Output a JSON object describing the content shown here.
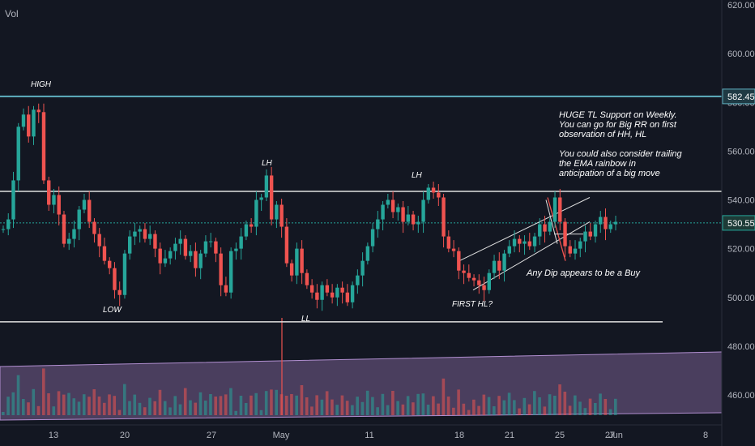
{
  "indicator_label": "Vol",
  "chart_data": {
    "type": "candlestick",
    "y_axis": {
      "ticks": [
        460,
        480,
        500,
        520,
        540,
        560,
        580,
        600,
        620
      ],
      "ylim": [
        450,
        623
      ],
      "position": "right"
    },
    "x_axis": {
      "tick_labels": [
        "13",
        "20",
        "27",
        "May",
        "11",
        "18",
        "21",
        "25",
        "27",
        "Jun",
        "8"
      ]
    },
    "price_marker": {
      "value": 530.55,
      "label": "530.55",
      "color": "#26a69a"
    },
    "resistance_marker": {
      "value": 582.45,
      "label": "582.45",
      "color": "#5fb0c0"
    },
    "horizontal_levels": [
      {
        "value": 582.45,
        "color": "#5fb0c0"
      },
      {
        "value": 543.5,
        "color": "#e0e0e0"
      },
      {
        "value": 490,
        "color": "#e0e0e0"
      }
    ],
    "swing_labels": [
      "HIGH",
      "LH",
      "LH",
      "LOW",
      "LL",
      "FIRST HL?",
      "Any Dip appears to be a Buy"
    ],
    "channel": {
      "from": {
        "x": "18",
        "lower": 503,
        "upper": 515
      },
      "to": {
        "x": "25",
        "lower": 533,
        "upper": 541
      }
    },
    "annotation_text": "HUGE TL Support on Weekly.\nYou can go for Big RR on first\nobservation of HH, HL\n\nYou could also consider trailing\nthe EMA rainbow in\nanticipation of a big move",
    "colors": {
      "up": "#26a69a",
      "down": "#ef5350",
      "background": "#131722",
      "volume_band": "#8e6fa8"
    },
    "close_path": [
      528,
      532,
      548,
      570,
      575,
      566,
      577,
      576,
      548,
      538,
      542,
      534,
      522,
      524,
      528,
      536,
      540,
      531,
      526,
      521,
      515,
      512,
      503,
      501,
      518,
      525,
      527,
      528,
      524,
      526,
      520,
      514,
      516,
      519,
      522,
      524,
      517,
      519,
      512,
      518,
      523,
      523,
      518,
      505,
      502,
      519,
      520,
      525,
      530,
      529,
      540,
      541,
      550,
      532,
      538,
      529,
      514,
      509,
      520,
      510,
      505,
      502,
      499,
      505,
      502,
      500,
      504,
      502,
      498,
      505,
      509,
      515,
      521,
      528,
      532,
      538,
      540,
      535,
      537,
      531,
      534,
      530,
      531,
      540,
      545,
      543,
      541,
      525,
      520,
      519,
      511,
      510,
      508,
      507,
      505,
      503,
      510,
      515,
      511,
      518,
      521,
      524,
      522,
      523,
      521,
      525,
      530,
      527,
      531,
      541,
      531,
      521,
      518,
      520,
      523,
      527,
      525,
      530,
      533,
      528,
      530,
      531
    ]
  }
}
